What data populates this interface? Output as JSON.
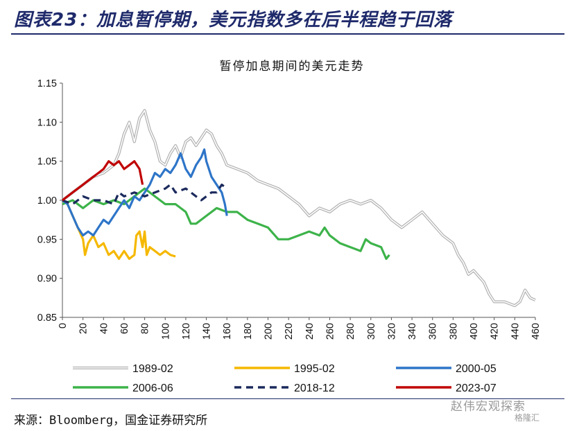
{
  "figure": {
    "title": "图表23：加息暂停期，美元指数多在后半程趋于回落",
    "source": "来源：Bloomberg，国金证券研究所",
    "watermark_primary": "赵伟宏观探索",
    "watermark_secondary": "格隆汇"
  },
  "chart_data": {
    "type": "line",
    "title": "暂停加息期间的美元走势",
    "xlabel": "",
    "ylabel": "",
    "xlim": [
      0,
      460
    ],
    "ylim": [
      0.85,
      1.15
    ],
    "x_ticks": [
      0,
      20,
      40,
      60,
      80,
      100,
      120,
      140,
      160,
      180,
      200,
      220,
      240,
      260,
      280,
      300,
      320,
      340,
      360,
      380,
      400,
      420,
      440,
      460
    ],
    "y_ticks": [
      0.85,
      0.9,
      0.95,
      1.0,
      1.05,
      1.1,
      1.15
    ],
    "y_tick_labels": [
      "0.85",
      "0.90",
      "0.95",
      "1.00",
      "1.05",
      "1.10",
      "1.15"
    ],
    "grid": false,
    "legend_position": "bottom",
    "series": [
      {
        "name": "1989-02",
        "color": "#b0b0b0",
        "style": "double",
        "points": [
          [
            0,
            1.0
          ],
          [
            10,
            1.01
          ],
          [
            20,
            1.02
          ],
          [
            30,
            1.03
          ],
          [
            40,
            1.035
          ],
          [
            50,
            1.045
          ],
          [
            55,
            1.06
          ],
          [
            60,
            1.085
          ],
          [
            65,
            1.1
          ],
          [
            70,
            1.075
          ],
          [
            75,
            1.105
          ],
          [
            80,
            1.115
          ],
          [
            85,
            1.09
          ],
          [
            90,
            1.075
          ],
          [
            95,
            1.05
          ],
          [
            100,
            1.045
          ],
          [
            105,
            1.06
          ],
          [
            110,
            1.07
          ],
          [
            115,
            1.055
          ],
          [
            120,
            1.075
          ],
          [
            125,
            1.08
          ],
          [
            130,
            1.07
          ],
          [
            135,
            1.08
          ],
          [
            140,
            1.09
          ],
          [
            145,
            1.085
          ],
          [
            150,
            1.07
          ],
          [
            155,
            1.06
          ],
          [
            160,
            1.045
          ],
          [
            170,
            1.04
          ],
          [
            180,
            1.035
          ],
          [
            190,
            1.025
          ],
          [
            200,
            1.02
          ],
          [
            210,
            1.015
          ],
          [
            220,
            1.005
          ],
          [
            230,
            0.995
          ],
          [
            240,
            0.98
          ],
          [
            250,
            0.99
          ],
          [
            260,
            0.985
          ],
          [
            270,
            0.995
          ],
          [
            280,
            1.0
          ],
          [
            290,
            0.995
          ],
          [
            300,
            1.0
          ],
          [
            310,
            0.99
          ],
          [
            320,
            0.975
          ],
          [
            330,
            0.965
          ],
          [
            340,
            0.975
          ],
          [
            350,
            0.985
          ],
          [
            360,
            0.97
          ],
          [
            370,
            0.955
          ],
          [
            380,
            0.945
          ],
          [
            385,
            0.93
          ],
          [
            390,
            0.92
          ],
          [
            395,
            0.905
          ],
          [
            400,
            0.91
          ],
          [
            410,
            0.895
          ],
          [
            415,
            0.88
          ],
          [
            420,
            0.87
          ],
          [
            430,
            0.87
          ],
          [
            440,
            0.865
          ],
          [
            445,
            0.87
          ],
          [
            450,
            0.885
          ],
          [
            455,
            0.875
          ],
          [
            460,
            0.872
          ]
        ]
      },
      {
        "name": "1995-02",
        "color": "#f5b800",
        "style": "solid",
        "points": [
          [
            0,
            1.0
          ],
          [
            5,
            0.995
          ],
          [
            10,
            0.98
          ],
          [
            15,
            0.965
          ],
          [
            20,
            0.95
          ],
          [
            22,
            0.93
          ],
          [
            25,
            0.945
          ],
          [
            30,
            0.955
          ],
          [
            35,
            0.94
          ],
          [
            40,
            0.945
          ],
          [
            45,
            0.93
          ],
          [
            50,
            0.935
          ],
          [
            55,
            0.925
          ],
          [
            60,
            0.935
          ],
          [
            65,
            0.925
          ],
          [
            70,
            0.93
          ],
          [
            72,
            0.955
          ],
          [
            75,
            0.96
          ],
          [
            78,
            0.94
          ],
          [
            80,
            0.96
          ],
          [
            82,
            0.93
          ],
          [
            85,
            0.94
          ],
          [
            90,
            0.935
          ],
          [
            95,
            0.93
          ],
          [
            100,
            0.935
          ],
          [
            105,
            0.93
          ],
          [
            110,
            0.928
          ]
        ]
      },
      {
        "name": "2000-05",
        "color": "#2e75c8",
        "style": "solid",
        "points": [
          [
            0,
            1.0
          ],
          [
            5,
            0.995
          ],
          [
            10,
            0.98
          ],
          [
            15,
            0.965
          ],
          [
            20,
            0.955
          ],
          [
            25,
            0.96
          ],
          [
            30,
            0.955
          ],
          [
            35,
            0.965
          ],
          [
            40,
            0.975
          ],
          [
            45,
            0.97
          ],
          [
            50,
            0.98
          ],
          [
            55,
            0.99
          ],
          [
            60,
            1.0
          ],
          [
            65,
            0.99
          ],
          [
            70,
            1.005
          ],
          [
            75,
            1.0
          ],
          [
            80,
            1.01
          ],
          [
            85,
            1.02
          ],
          [
            90,
            1.035
          ],
          [
            95,
            1.03
          ],
          [
            100,
            1.04
          ],
          [
            105,
            1.035
          ],
          [
            110,
            1.045
          ],
          [
            115,
            1.06
          ],
          [
            120,
            1.04
          ],
          [
            125,
            1.03
          ],
          [
            130,
            1.045
          ],
          [
            135,
            1.055
          ],
          [
            138,
            1.065
          ],
          [
            140,
            1.05
          ],
          [
            145,
            1.03
          ],
          [
            150,
            1.02
          ],
          [
            155,
            1.01
          ],
          [
            158,
            0.995
          ],
          [
            160,
            0.98
          ]
        ]
      },
      {
        "name": "2006-06",
        "color": "#3db34a",
        "style": "solid",
        "points": [
          [
            0,
            0.995
          ],
          [
            10,
            1.0
          ],
          [
            20,
            0.99
          ],
          [
            30,
            1.0
          ],
          [
            40,
            0.995
          ],
          [
            50,
            1.0
          ],
          [
            60,
            0.995
          ],
          [
            70,
            1.005
          ],
          [
            80,
            1.015
          ],
          [
            90,
            1.005
          ],
          [
            100,
            0.995
          ],
          [
            110,
            0.995
          ],
          [
            120,
            0.985
          ],
          [
            125,
            0.97
          ],
          [
            130,
            0.97
          ],
          [
            140,
            0.98
          ],
          [
            150,
            0.99
          ],
          [
            160,
            0.985
          ],
          [
            170,
            0.985
          ],
          [
            180,
            0.975
          ],
          [
            190,
            0.97
          ],
          [
            200,
            0.965
          ],
          [
            210,
            0.95
          ],
          [
            220,
            0.95
          ],
          [
            230,
            0.955
          ],
          [
            240,
            0.96
          ],
          [
            250,
            0.955
          ],
          [
            255,
            0.965
          ],
          [
            260,
            0.955
          ],
          [
            270,
            0.945
          ],
          [
            280,
            0.94
          ],
          [
            290,
            0.935
          ],
          [
            295,
            0.95
          ],
          [
            300,
            0.945
          ],
          [
            310,
            0.94
          ],
          [
            315,
            0.925
          ],
          [
            318,
            0.93
          ]
        ]
      },
      {
        "name": "2018-12",
        "color": "#1b2a5c",
        "style": "dashed",
        "points": [
          [
            0,
            1.0
          ],
          [
            10,
            0.995
          ],
          [
            20,
            1.005
          ],
          [
            30,
            1.0
          ],
          [
            40,
            1.0
          ],
          [
            50,
            0.995
          ],
          [
            55,
            1.01
          ],
          [
            60,
            1.005
          ],
          [
            70,
            1.01
          ],
          [
            80,
            1.005
          ],
          [
            90,
            1.01
          ],
          [
            100,
            1.015
          ],
          [
            105,
            1.02
          ],
          [
            110,
            1.01
          ],
          [
            120,
            1.015
          ],
          [
            125,
            1.01
          ],
          [
            130,
            1.005
          ],
          [
            135,
            1.0
          ],
          [
            140,
            1.005
          ],
          [
            145,
            1.01
          ],
          [
            150,
            1.01
          ],
          [
            155,
            1.02
          ],
          [
            160,
            1.015
          ]
        ]
      },
      {
        "name": "2023-07",
        "color": "#c00000",
        "style": "solid",
        "points": [
          [
            0,
            1.0
          ],
          [
            5,
            1.005
          ],
          [
            10,
            1.01
          ],
          [
            15,
            1.015
          ],
          [
            20,
            1.02
          ],
          [
            25,
            1.025
          ],
          [
            30,
            1.03
          ],
          [
            35,
            1.035
          ],
          [
            40,
            1.04
          ],
          [
            45,
            1.05
          ],
          [
            50,
            1.045
          ],
          [
            55,
            1.05
          ],
          [
            60,
            1.04
          ],
          [
            65,
            1.045
          ],
          [
            70,
            1.05
          ],
          [
            75,
            1.04
          ],
          [
            78,
            1.02
          ]
        ]
      }
    ]
  }
}
